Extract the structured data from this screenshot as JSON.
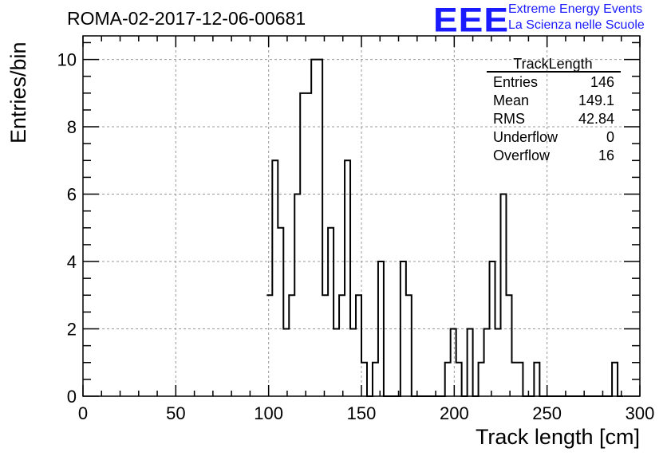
{
  "header": {
    "title": "ROMA-02-2017-12-06-00681",
    "logo": "EEE",
    "logo_line1": "Extreme Energy Events",
    "logo_line2": "La Scienza nelle Scuole"
  },
  "stats": {
    "name": "TrackLength",
    "rows": [
      {
        "label": "Entries",
        "value": "146"
      },
      {
        "label": "Mean",
        "value": "149.1"
      },
      {
        "label": "RMS",
        "value": "42.84"
      },
      {
        "label": "Underflow",
        "value": "0"
      },
      {
        "label": "Overflow",
        "value": "16"
      }
    ]
  },
  "chart_data": {
    "type": "bar",
    "title": "ROMA-02-2017-12-06-00681",
    "xlabel": "Track length [cm]",
    "ylabel": "Entries/bin",
    "xlim": [
      0,
      300
    ],
    "ylim": [
      0,
      10.7
    ],
    "bin_width": 3,
    "xticks": [
      0,
      50,
      100,
      150,
      200,
      250,
      300
    ],
    "yticks": [
      0,
      2,
      4,
      6,
      8,
      10
    ],
    "grid": true,
    "legend": "top-right",
    "bins": [
      {
        "x": 99,
        "y": 3
      },
      {
        "x": 102,
        "y": 7
      },
      {
        "x": 105,
        "y": 5
      },
      {
        "x": 108,
        "y": 2
      },
      {
        "x": 111,
        "y": 3
      },
      {
        "x": 114,
        "y": 6
      },
      {
        "x": 117,
        "y": 9
      },
      {
        "x": 120,
        "y": 9
      },
      {
        "x": 123,
        "y": 10
      },
      {
        "x": 126,
        "y": 10
      },
      {
        "x": 129,
        "y": 3
      },
      {
        "x": 132,
        "y": 5
      },
      {
        "x": 135,
        "y": 2
      },
      {
        "x": 138,
        "y": 3
      },
      {
        "x": 141,
        "y": 7
      },
      {
        "x": 144,
        "y": 2
      },
      {
        "x": 147,
        "y": 3
      },
      {
        "x": 150,
        "y": 1
      },
      {
        "x": 153,
        "y": 0
      },
      {
        "x": 156,
        "y": 1
      },
      {
        "x": 159,
        "y": 4
      },
      {
        "x": 162,
        "y": 0
      },
      {
        "x": 165,
        "y": 0
      },
      {
        "x": 168,
        "y": 0
      },
      {
        "x": 171,
        "y": 4
      },
      {
        "x": 174,
        "y": 3
      },
      {
        "x": 177,
        "y": 0
      },
      {
        "x": 180,
        "y": 0
      },
      {
        "x": 183,
        "y": 0
      },
      {
        "x": 186,
        "y": 0
      },
      {
        "x": 189,
        "y": 0
      },
      {
        "x": 192,
        "y": 0
      },
      {
        "x": 195,
        "y": 1
      },
      {
        "x": 198,
        "y": 2
      },
      {
        "x": 201,
        "y": 1
      },
      {
        "x": 204,
        "y": 0
      },
      {
        "x": 207,
        "y": 2
      },
      {
        "x": 210,
        "y": 0
      },
      {
        "x": 213,
        "y": 1
      },
      {
        "x": 216,
        "y": 2
      },
      {
        "x": 219,
        "y": 4
      },
      {
        "x": 222,
        "y": 2
      },
      {
        "x": 225,
        "y": 6
      },
      {
        "x": 228,
        "y": 3
      },
      {
        "x": 231,
        "y": 1
      },
      {
        "x": 234,
        "y": 1
      },
      {
        "x": 237,
        "y": 0
      },
      {
        "x": 240,
        "y": 0
      },
      {
        "x": 243,
        "y": 1
      },
      {
        "x": 246,
        "y": 0
      },
      {
        "x": 249,
        "y": 0
      },
      {
        "x": 252,
        "y": 0
      },
      {
        "x": 255,
        "y": 0
      },
      {
        "x": 258,
        "y": 0
      },
      {
        "x": 261,
        "y": 0
      },
      {
        "x": 264,
        "y": 0
      },
      {
        "x": 267,
        "y": 0
      },
      {
        "x": 270,
        "y": 0
      },
      {
        "x": 273,
        "y": 0
      },
      {
        "x": 276,
        "y": 0
      },
      {
        "x": 279,
        "y": 0
      },
      {
        "x": 282,
        "y": 0
      },
      {
        "x": 285,
        "y": 1
      },
      {
        "x": 288,
        "y": 0
      }
    ]
  }
}
